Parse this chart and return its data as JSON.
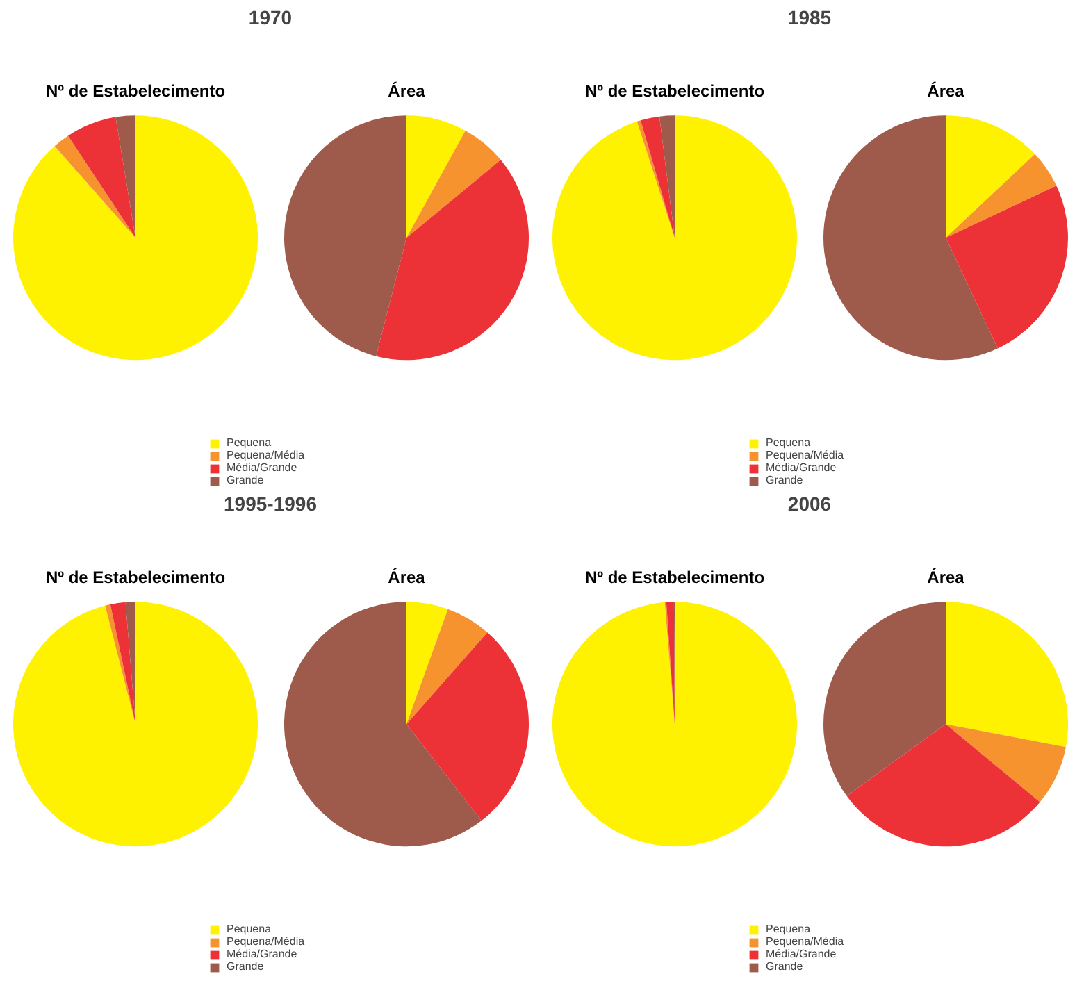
{
  "chart_data": [
    {
      "type": "pie",
      "title": "1970",
      "categories": [
        "Pequena",
        "Pequena/Média",
        "Média/Grande",
        "Grande"
      ],
      "colors": [
        "#fff200",
        "#f7932f",
        "#ed3237",
        "#9e5a4a"
      ],
      "legend": "bottom",
      "series": [
        {
          "name": "Nº de Estabelecimento",
          "values": [
            88.5,
            2.2,
            6.7,
            2.6
          ]
        },
        {
          "name": "Área",
          "values": [
            8,
            6,
            40,
            46
          ]
        }
      ]
    },
    {
      "type": "pie",
      "title": "1985",
      "categories": [
        "Pequena",
        "Pequena/Média",
        "Média/Grande",
        "Grande"
      ],
      "colors": [
        "#fff200",
        "#f7932f",
        "#ed3237",
        "#9e5a4a"
      ],
      "legend": "bottom",
      "series": [
        {
          "name": "Nº de Estabelecimento",
          "values": [
            95,
            0.5,
            2.5,
            2
          ]
        },
        {
          "name": "Área",
          "values": [
            13,
            5,
            25,
            57
          ]
        }
      ]
    },
    {
      "type": "pie",
      "title": "1995-1996",
      "categories": [
        "Pequena",
        "Pequena/Média",
        "Média/Grande",
        "Grande"
      ],
      "colors": [
        "#fff200",
        "#f7932f",
        "#ed3237",
        "#9e5a4a"
      ],
      "legend": "bottom",
      "series": [
        {
          "name": "Nº de Estabelecimento",
          "values": [
            96,
            0.7,
            2,
            1.3
          ]
        },
        {
          "name": "Área",
          "values": [
            5.5,
            6,
            28,
            60.5
          ]
        }
      ]
    },
    {
      "type": "pie",
      "title": "2006",
      "categories": [
        "Pequena",
        "Pequena/Média",
        "Média/Grande",
        "Grande"
      ],
      "colors": [
        "#fff200",
        "#f7932f",
        "#ed3237",
        "#9e5a4a"
      ],
      "legend": "bottom",
      "series": [
        {
          "name": "Nº de Estabelecimento",
          "values": [
            98.7,
            0.2,
            1,
            0.1
          ]
        },
        {
          "name": "Área",
          "values": [
            28,
            8,
            29,
            35
          ]
        }
      ]
    }
  ]
}
